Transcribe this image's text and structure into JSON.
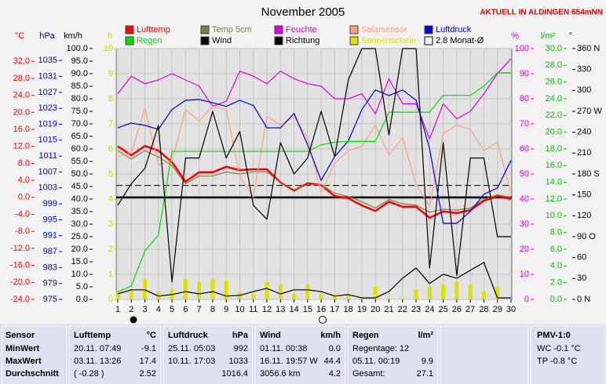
{
  "chart_data": {
    "type": "line",
    "title": "November 2005",
    "subtitle": "AKTUELL IN ALDINGEN 654mNN",
    "x": [
      1,
      2,
      3,
      4,
      5,
      6,
      7,
      8,
      9,
      10,
      11,
      12,
      13,
      14,
      15,
      16,
      17,
      18,
      19,
      20,
      21,
      22,
      23,
      24,
      25,
      26,
      27,
      28,
      29,
      30
    ],
    "xlim": [
      1,
      30
    ],
    "xticks": [
      1,
      2,
      3,
      4,
      5,
      6,
      7,
      8,
      9,
      10,
      11,
      12,
      13,
      14,
      15,
      16,
      17,
      18,
      19,
      20,
      21,
      22,
      23,
      24,
      25,
      26,
      27,
      28,
      29,
      30
    ],
    "grid": true,
    "axes": [
      {
        "label": "°C",
        "color": "#ff0000",
        "lim": [
          -24,
          35
        ],
        "ticks": [
          {
            "value": -24,
            "label": "-24.0"
          },
          {
            "value": -20,
            "label": "-20.0"
          },
          {
            "value": -16,
            "label": "-16.0"
          },
          {
            "value": -12,
            "label": "-12.0"
          },
          {
            "value": -8,
            "label": "-8.0"
          },
          {
            "value": -4,
            "label": "-4.0"
          },
          {
            "value": 0,
            "label": "0.0"
          },
          {
            "value": 4,
            "label": "4.0"
          },
          {
            "value": 8,
            "label": "8.0"
          },
          {
            "value": 12,
            "label": "12.0"
          },
          {
            "value": 16,
            "label": "16.0"
          },
          {
            "value": 20,
            "label": "20.0"
          },
          {
            "value": 24,
            "label": "24.0"
          },
          {
            "value": 28,
            "label": "28.0"
          },
          {
            "value": 32,
            "label": "32.0"
          }
        ]
      },
      {
        "label": "hPa",
        "color": "#0000e0",
        "lim": [
          975,
          1038
        ],
        "ticks": [
          975,
          979,
          983,
          987,
          991,
          995,
          999,
          1003,
          1007,
          1011,
          1015,
          1019,
          1023,
          1027,
          1031,
          1035
        ]
      },
      {
        "label": "km/h",
        "color": "#000000",
        "lim": [
          0,
          100
        ],
        "ticks": [
          {
            "value": 0,
            "label": "0.0"
          },
          {
            "value": 5,
            "label": "5.0"
          },
          {
            "value": 10,
            "label": "10.0"
          },
          {
            "value": 15,
            "label": "15.0"
          },
          {
            "value": 20,
            "label": "20.0"
          },
          {
            "value": 25,
            "label": "25.0"
          },
          {
            "value": 30,
            "label": "30.0"
          },
          {
            "value": 35,
            "label": "35.0"
          },
          {
            "value": 40,
            "label": "40.0"
          },
          {
            "value": 45,
            "label": "45.0"
          },
          {
            "value": 50,
            "label": "50.0"
          },
          {
            "value": 55,
            "label": "55.0"
          },
          {
            "value": 60,
            "label": "60.0"
          },
          {
            "value": 65,
            "label": "65.0"
          },
          {
            "value": 70,
            "label": "70.0"
          },
          {
            "value": 75,
            "label": "75.0"
          },
          {
            "value": 80,
            "label": "80.0"
          },
          {
            "value": 85,
            "label": "85.0"
          },
          {
            "value": 90,
            "label": "90.0"
          },
          {
            "value": 95,
            "label": "95.0"
          },
          {
            "value": 100,
            "label": "100.0"
          }
        ]
      },
      {
        "label": "h",
        "color": "#d0d000",
        "lim": [
          0,
          10
        ],
        "ticks": [
          0,
          1,
          2,
          3,
          4,
          5,
          6,
          7,
          8,
          9,
          10
        ]
      },
      {
        "label": "%",
        "color": "#e000e0",
        "lim": [
          0,
          100
        ],
        "ticks": [
          0,
          10,
          20,
          30,
          40,
          50,
          60,
          70,
          80,
          90,
          100
        ]
      },
      {
        "label": "l/m²",
        "color": "#00c000",
        "lim": [
          0,
          30
        ],
        "ticks": [
          {
            "value": 0,
            "label": "0.0"
          },
          {
            "value": 2,
            "label": "2.0"
          },
          {
            "value": 4,
            "label": "4.0"
          },
          {
            "value": 6,
            "label": "6.0"
          },
          {
            "value": 8,
            "label": "8.0"
          },
          {
            "value": 10,
            "label": "10.0"
          },
          {
            "value": 12,
            "label": "12.0"
          },
          {
            "value": 14,
            "label": "14.0"
          },
          {
            "value": 16,
            "label": "16.0"
          },
          {
            "value": 18,
            "label": "18.0"
          },
          {
            "value": 20,
            "label": "20.0"
          },
          {
            "value": 22,
            "label": "22.0"
          },
          {
            "value": 24,
            "label": "24.0"
          },
          {
            "value": 26,
            "label": "26.0"
          },
          {
            "value": 28,
            "label": "28.0"
          },
          {
            "value": 30,
            "label": "30.0"
          }
        ]
      },
      {
        "label": "°",
        "color": "#000000",
        "lim": [
          0,
          360
        ],
        "ticks": [
          {
            "value": 0,
            "label": "0 N"
          },
          30,
          60,
          {
            "value": 90,
            "label": "90 O"
          },
          120,
          150,
          {
            "value": 180,
            "label": "180 S"
          },
          210,
          240,
          {
            "value": 270,
            "label": "270 W"
          },
          300,
          330,
          {
            "value": 360,
            "label": "360 N"
          }
        ]
      }
    ],
    "series": [
      {
        "name": "Lufttemp",
        "color": "#ff0000",
        "axis": "°C",
        "values": [
          12.0,
          9.9,
          12.1,
          11.0,
          8.3,
          3.7,
          5.9,
          5.9,
          7.2,
          6.4,
          6.6,
          6.6,
          3.5,
          1.6,
          3.3,
          2.9,
          0.3,
          -0.2,
          -1.9,
          -3.2,
          -1.0,
          -2.2,
          -2.2,
          -4.8,
          -3.3,
          -3.7,
          -3.0,
          -0.8,
          0.3,
          -0.4
        ]
      },
      {
        "name": "Temp 5cm",
        "color": "#808040",
        "axis": "°C",
        "values": [
          11.0,
          9.0,
          11.0,
          9.5,
          7.5,
          3.2,
          5.0,
          5.0,
          6.0,
          5.5,
          6.0,
          6.0,
          3.5,
          1.8,
          3.0,
          3.0,
          1.0,
          0.2,
          -1.0,
          -2.5,
          -0.5,
          -1.5,
          -1.8,
          -3.5,
          -2.8,
          -3.0,
          -2.5,
          -0.5,
          0.6,
          0.0
        ]
      },
      {
        "name": "Feuchte",
        "color": "#e000e0",
        "axis": "%",
        "values": [
          82,
          89,
          86,
          87.5,
          90,
          87.5,
          85,
          77,
          79,
          91,
          89,
          86,
          91,
          88,
          86,
          85,
          80,
          80,
          82,
          74,
          88,
          78,
          78,
          64,
          78,
          72,
          75,
          82,
          90,
          96
        ]
      },
      {
        "name": "Solarsensor",
        "color": "#ffa080",
        "axis": "°C",
        "values": [
          9.6,
          10.5,
          21.0,
          7.7,
          8.6,
          20.6,
          17.9,
          21.5,
          20.6,
          5.0,
          0.0,
          19.0,
          17.0,
          19.0,
          14.0,
          1.0,
          8.0,
          11.0,
          12.0,
          17.0,
          10.0,
          14.0,
          3.0,
          -2.0,
          15.0,
          17.0,
          16.0,
          11.0,
          13.0,
          1.0
        ]
      },
      {
        "name": "Luftdruck",
        "color": "#0000e0",
        "axis": "hPa",
        "values": [
          1018.1,
          1019.3,
          1018.7,
          1017.7,
          1022.7,
          1025.0,
          1025.2,
          1024.4,
          1023.5,
          1025.0,
          1023.7,
          1018.1,
          1018.1,
          1021.7,
          1013.8,
          1004.9,
          1010.9,
          1014.8,
          1022.7,
          1027.6,
          1026.2,
          1027.6,
          1025.0,
          1012.8,
          994.1,
          994.1,
          997.1,
          1001.4,
          1003.0,
          1009.9
        ]
      },
      {
        "name": "Regen",
        "color": "#00e000",
        "axis": "l/m²",
        "values": [
          0.9,
          1.6,
          5.8,
          7.7,
          17.7,
          17.7,
          17.7,
          17.7,
          17.7,
          17.7,
          17.7,
          17.7,
          17.7,
          17.7,
          17.7,
          18.5,
          18.8,
          18.9,
          18.9,
          18.9,
          22.4,
          22.4,
          22.4,
          22.4,
          24.4,
          24.4,
          24.4,
          25.5,
          27.1,
          27.1
        ]
      },
      {
        "name": "Wind",
        "color": "#000000",
        "axis": "km/h",
        "values": [
          2.2,
          3.8,
          3.8,
          1.3,
          1.9,
          3.1,
          2.2,
          3.1,
          1.3,
          1.6,
          3.1,
          4.4,
          2.2,
          3.8,
          3.8,
          3.1,
          1.3,
          1.9,
          0.6,
          0.6,
          3.1,
          8.4,
          12.5,
          6.3,
          10.0,
          8.4,
          11.6,
          14.7,
          0.6,
          0.6
        ]
      },
      {
        "name": "Richtung",
        "color": "#000000",
        "axis": "°",
        "values": [
          135,
          166,
          188,
          250,
          25,
          203,
          203,
          270,
          203,
          241,
          135,
          115,
          225,
          180,
          203,
          270,
          205,
          315,
          360,
          360,
          236,
          360,
          360,
          45,
          225,
          34,
          203,
          203,
          90,
          90
        ]
      },
      {
        "name": "Sonnenschein",
        "color": "#e0e000",
        "axis": "h",
        "type": "bar",
        "values": [
          0.3,
          0.4,
          0.8,
          0.3,
          0.4,
          0.8,
          0.7,
          0.8,
          0.75,
          0.3,
          0.2,
          0.7,
          0.6,
          0.2,
          0.6,
          0.2,
          0.2,
          0.2,
          0.05,
          0.5,
          0.05,
          0.05,
          0.4,
          0.5,
          0.6,
          0.7,
          0.6,
          0.3,
          0.5,
          0
        ]
      }
    ],
    "reference_lines": [
      {
        "value": 2.8,
        "label": "2.8 Monat-Ø",
        "axis": "°C",
        "color": "#000000"
      }
    ]
  },
  "stats": {
    "labels": [
      "Sensor",
      "MinWert",
      "MaxWert",
      "Durchschnitt"
    ],
    "panels": [
      {
        "title": "Lufttemp",
        "unit": "°C",
        "rows": [
          {
            "left": "20.11.  07:49",
            "right": "-9.1"
          },
          {
            "left": "03.11.  13:26",
            "right": "17.4"
          },
          {
            "left": "( -0.28 )",
            "right": "2.52"
          }
        ]
      },
      {
        "title": "Luftdruck",
        "unit": "hPa",
        "rows": [
          {
            "left": "25.11.  05:03",
            "right": "992"
          },
          {
            "left": "10.11.  17:03",
            "right": "1033"
          },
          {
            "right": "1016.4"
          }
        ]
      },
      {
        "title": "Wind",
        "unit": "km/h",
        "rows": [
          {
            "left": "01.11.  00:38",
            "right": "0.0"
          },
          {
            "left": "16.11.  19:57  W",
            "right": "44.4"
          },
          {
            "left": "3056.6 km",
            "right": "4.2"
          }
        ]
      },
      {
        "title": "Regen",
        "unit": "l/m²",
        "rows": [
          {
            "left": "Regentage: 12"
          },
          {
            "left": "05.11.  00:19",
            "right": "9.9"
          },
          {
            "left": "Gesamt:",
            "right": "27.1"
          }
        ]
      }
    ],
    "pmv": {
      "title": "PMV-1:0",
      "rows": [
        "WC -0.1 °C",
        "TP -0.8 °C"
      ]
    }
  }
}
